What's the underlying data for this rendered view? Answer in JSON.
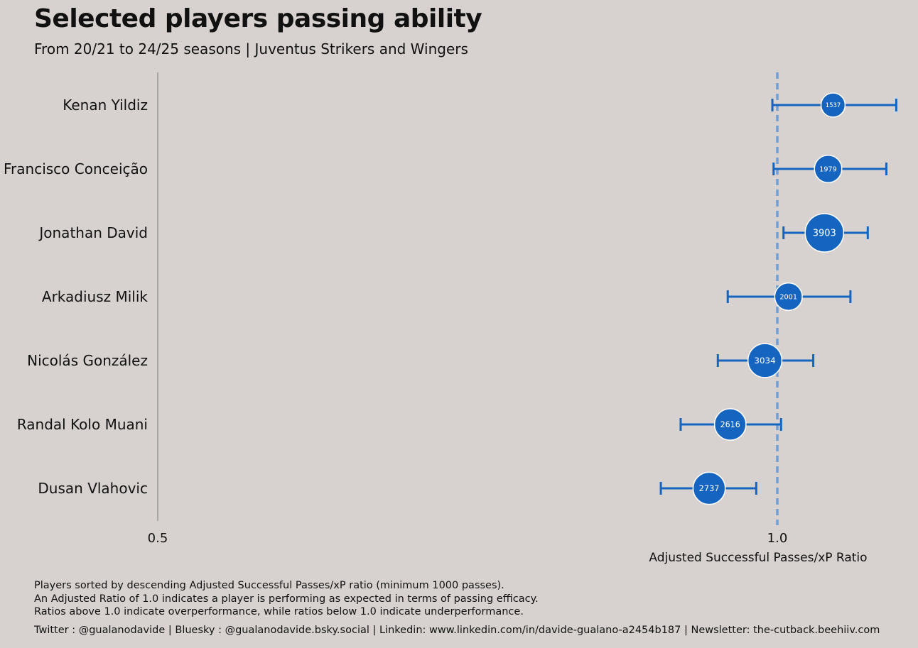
{
  "title": "Selected players passing ability",
  "subtitle": "From 20/21 to 24/25 seasons | Juventus Strikers and Wingers",
  "footnotes": [
    "Players sorted by descending Adjusted Successful Passes/xP ratio (minimum 1000 passes).",
    "An Adjusted Ratio of 1.0 indicates a player is performing as expected in terms of passing efficacy.",
    "Ratios above 1.0 indicate overperformance, while ratios below 1.0 indicate underperformance."
  ],
  "credits": "Twitter : @gualanodavide | Bluesky : @gualanodavide.bsky.social | Linkedin: www.linkedin.com/in/davide-gualano-a2454b187 | Newsletter: the-cutback.beehiiv.com",
  "colors": {
    "background": "#d7d2d0",
    "marker": "#1565c0",
    "reference_line": "#6f9fd8",
    "axis": "#9a9a9a"
  },
  "chart_data": {
    "type": "scatter",
    "xlabel": "Adjusted Successful Passes/xP Ratio",
    "xticks": [
      0.5,
      1.0
    ],
    "xtick_labels": [
      "0.5",
      "1.0"
    ],
    "xlim": [
      0.5,
      1.1
    ],
    "reference_line": 1.0,
    "marker_size_encodes": "passes",
    "series": [
      {
        "player": "Kenan Yildiz",
        "ratio": 1.045,
        "low": 0.996,
        "high": 1.096,
        "passes": 1537
      },
      {
        "player": "Francisco Conceição",
        "ratio": 1.041,
        "low": 0.997,
        "high": 1.088,
        "passes": 1979
      },
      {
        "player": "Jonathan David",
        "ratio": 1.038,
        "low": 1.005,
        "high": 1.073,
        "passes": 3903
      },
      {
        "player": "Arkadiusz Milik",
        "ratio": 1.009,
        "low": 0.96,
        "high": 1.059,
        "passes": 2001
      },
      {
        "player": "Nicolás González",
        "ratio": 0.99,
        "low": 0.952,
        "high": 1.029,
        "passes": 3034
      },
      {
        "player": "Randal Kolo Muani",
        "ratio": 0.962,
        "low": 0.922,
        "high": 1.003,
        "passes": 2616
      },
      {
        "player": "Dusan Vlahovic",
        "ratio": 0.945,
        "low": 0.906,
        "high": 0.983,
        "passes": 2737
      }
    ]
  }
}
